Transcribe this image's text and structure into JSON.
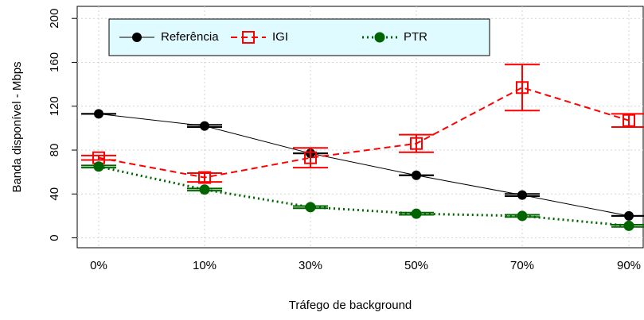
{
  "chart_data": {
    "type": "line",
    "x_label": "Tráfego de background",
    "y_label": "Banda disponível - Mbps",
    "categories": [
      "0%",
      "10%",
      "30%",
      "50%",
      "70%",
      "90%"
    ],
    "ylim": [
      -9,
      211
    ],
    "yticks": [
      0,
      40,
      80,
      120,
      160,
      200
    ],
    "grid": true,
    "legend": "top-left",
    "series": [
      {
        "name": "Referência",
        "color": "#000000",
        "values": [
          113,
          102,
          77,
          57,
          39,
          20
        ],
        "errors": [
          0,
          1,
          0,
          0,
          1,
          0
        ]
      },
      {
        "name": "IGI",
        "color": "#ff0000",
        "values": [
          73,
          55,
          73,
          86,
          137,
          107
        ],
        "errors": [
          2,
          4,
          9,
          8,
          21,
          6
        ]
      },
      {
        "name": "PTR",
        "color": "#006400",
        "values": [
          65,
          44,
          28,
          22,
          20,
          11
        ],
        "errors": [
          1,
          1,
          1,
          1,
          1,
          1
        ]
      }
    ]
  }
}
